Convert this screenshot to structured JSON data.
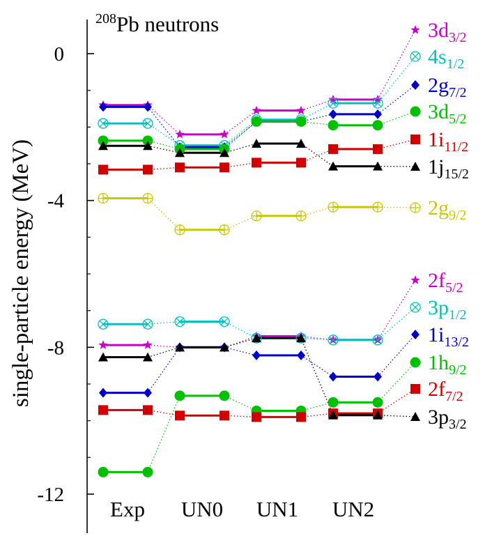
{
  "chart_data": {
    "type": "line",
    "title_main": "Pb neutrons",
    "title_superscript": "208",
    "ylabel": "single-particle energy (MeV)",
    "ylim": [
      -12.6,
      1.0
    ],
    "yticks": [
      0,
      -4,
      -8,
      -12
    ],
    "ytick_labels": [
      "0",
      "-4",
      "-8",
      "-12"
    ],
    "categories": [
      "Exp",
      "UN0",
      "UN1",
      "UN2"
    ],
    "grid": false,
    "legend_placement": "right",
    "series": [
      {
        "base": "3d",
        "sub": "3/2",
        "color": "#c800c8",
        "marker": "star",
        "group": "upper",
        "values": [
          -1.4,
          -2.2,
          -1.55,
          -1.25
        ]
      },
      {
        "base": "4s",
        "sub": "1/2",
        "color": "#00c0c0",
        "marker": "circle-x",
        "group": "upper",
        "values": [
          -1.9,
          -2.5,
          -1.8,
          -1.35
        ]
      },
      {
        "base": "2g",
        "sub": "7/2",
        "color": "#0000c8",
        "marker": "diamond",
        "group": "upper",
        "values": [
          -1.45,
          -2.55,
          -1.85,
          -1.65
        ]
      },
      {
        "base": "3d",
        "sub": "5/2",
        "color": "#00c000",
        "marker": "circle",
        "group": "upper",
        "values": [
          -2.37,
          -2.6,
          -1.85,
          -1.95
        ]
      },
      {
        "base": "1i",
        "sub": "11/2",
        "color": "#d00000",
        "marker": "square",
        "group": "upper",
        "values": [
          -3.16,
          -3.1,
          -2.97,
          -2.6
        ]
      },
      {
        "base": "1j",
        "sub": "15/2",
        "color": "#000000",
        "marker": "triangle",
        "group": "upper",
        "values": [
          -2.51,
          -2.7,
          -2.45,
          -3.07
        ]
      },
      {
        "base": "2g",
        "sub": "9/2",
        "color": "#c8c800",
        "marker": "circle-plus",
        "group": "upper",
        "values": [
          -3.94,
          -4.8,
          -4.42,
          -4.18
        ]
      },
      {
        "base": "2f",
        "sub": "5/2",
        "color": "#c800c8",
        "marker": "star",
        "group": "lower",
        "values": [
          -7.94,
          -8.0,
          -7.7,
          -7.8
        ]
      },
      {
        "base": "3p",
        "sub": "1/2",
        "color": "#00c0c0",
        "marker": "circle-x",
        "group": "lower",
        "values": [
          -7.37,
          -7.3,
          -7.75,
          -7.8
        ]
      },
      {
        "base": "1i",
        "sub": "13/2",
        "color": "#0000c8",
        "marker": "diamond",
        "group": "lower",
        "values": [
          -9.24,
          -8.0,
          -8.22,
          -8.8
        ]
      },
      {
        "base": "1h",
        "sub": "9/2",
        "color": "#00c000",
        "marker": "circle",
        "group": "lower",
        "values": [
          -11.4,
          -9.32,
          -9.73,
          -9.5
        ]
      },
      {
        "base": "2f",
        "sub": "7/2",
        "color": "#d00000",
        "marker": "square",
        "group": "lower",
        "values": [
          -9.71,
          -9.86,
          -9.9,
          -9.8
        ]
      },
      {
        "base": "3p",
        "sub": "3/2",
        "color": "#000000",
        "marker": "triangle",
        "group": "lower",
        "values": [
          -8.27,
          -8.0,
          -7.75,
          -9.85
        ]
      }
    ]
  }
}
